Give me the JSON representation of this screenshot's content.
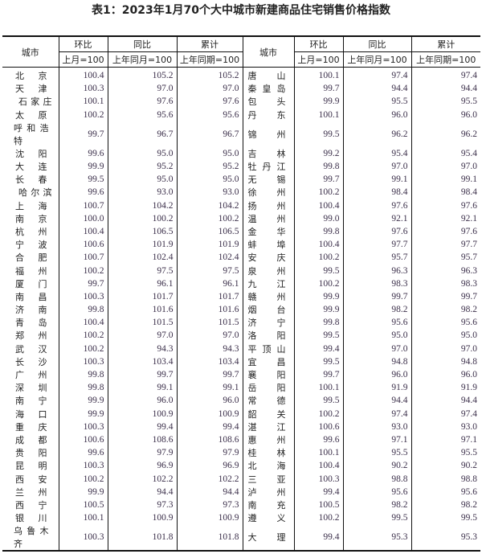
{
  "title": "表1：2023年1月70个大中城市新建商品住宅销售价格指数",
  "headers": {
    "city": "城市",
    "huanbi": "环比",
    "tongbi": "同比",
    "leiji": "累计",
    "huanbi_base": "上月=100",
    "tongbi_base": "上年同月=100",
    "leiji_base": "上年同期=100"
  },
  "left_rows": [
    [
      "北京",
      "100.4",
      "105.2",
      "105.2"
    ],
    [
      "天津",
      "100.3",
      "97.0",
      "97.0"
    ],
    [
      "石家庄",
      "100.1",
      "97.6",
      "97.6"
    ],
    [
      "太原",
      "100.2",
      "95.6",
      "95.6"
    ],
    [
      "呼和浩特",
      "99.7",
      "96.7",
      "96.7"
    ],
    [
      "沈阳",
      "99.6",
      "95.0",
      "95.0"
    ],
    [
      "大连",
      "99.9",
      "95.2",
      "95.2"
    ],
    [
      "长春",
      "99.5",
      "95.0",
      "95.0"
    ],
    [
      "哈尔滨",
      "99.6",
      "93.0",
      "93.0"
    ],
    [
      "上海",
      "100.7",
      "104.2",
      "104.2"
    ],
    [
      "南京",
      "100.0",
      "100.2",
      "100.2"
    ],
    [
      "杭州",
      "100.4",
      "106.5",
      "106.5"
    ],
    [
      "宁波",
      "100.6",
      "101.9",
      "101.9"
    ],
    [
      "合肥",
      "100.7",
      "102.4",
      "102.4"
    ],
    [
      "福州",
      "100.2",
      "97.5",
      "97.5"
    ],
    [
      "厦门",
      "99.7",
      "96.1",
      "96.1"
    ],
    [
      "南昌",
      "100.3",
      "101.7",
      "101.7"
    ],
    [
      "济南",
      "99.8",
      "101.6",
      "101.6"
    ],
    [
      "青岛",
      "100.4",
      "101.5",
      "101.5"
    ],
    [
      "郑州",
      "100.2",
      "97.0",
      "97.0"
    ],
    [
      "武汉",
      "100.2",
      "94.3",
      "94.3"
    ],
    [
      "长沙",
      "100.3",
      "103.4",
      "103.4"
    ],
    [
      "广州",
      "99.8",
      "99.7",
      "99.7"
    ],
    [
      "深圳",
      "99.8",
      "99.1",
      "99.1"
    ],
    [
      "南宁",
      "99.9",
      "96.0",
      "96.0"
    ],
    [
      "海口",
      "99.9",
      "100.9",
      "100.9"
    ],
    [
      "重庆",
      "100.3",
      "99.4",
      "99.4"
    ],
    [
      "成都",
      "100.6",
      "108.6",
      "108.6"
    ],
    [
      "贵阳",
      "99.6",
      "97.9",
      "97.9"
    ],
    [
      "昆明",
      "100.3",
      "96.9",
      "96.9"
    ],
    [
      "西安",
      "100.2",
      "102.2",
      "102.2"
    ],
    [
      "兰州",
      "99.9",
      "94.4",
      "94.4"
    ],
    [
      "西宁",
      "100.5",
      "97.3",
      "97.3"
    ],
    [
      "银川",
      "100.1",
      "100.9",
      "100.9"
    ],
    [
      "乌鲁木齐",
      "100.3",
      "101.8",
      "101.8"
    ]
  ],
  "right_rows": [
    [
      "唐山",
      "100.1",
      "97.4",
      "97.4"
    ],
    [
      "秦皇岛",
      "99.7",
      "94.4",
      "94.4"
    ],
    [
      "包头",
      "99.9",
      "95.5",
      "95.5"
    ],
    [
      "丹东",
      "100.1",
      "96.0",
      "96.0"
    ],
    [
      "锦州",
      "99.5",
      "96.2",
      "96.2"
    ],
    [
      "吉林",
      "99.2",
      "95.4",
      "95.4"
    ],
    [
      "牡丹江",
      "99.8",
      "97.0",
      "97.0"
    ],
    [
      "无锡",
      "99.7",
      "99.1",
      "99.1"
    ],
    [
      "徐州",
      "100.2",
      "98.4",
      "98.4"
    ],
    [
      "扬州",
      "100.4",
      "97.6",
      "97.6"
    ],
    [
      "温州",
      "99.0",
      "92.1",
      "92.1"
    ],
    [
      "金华",
      "99.8",
      "97.6",
      "97.6"
    ],
    [
      "蚌埠",
      "100.4",
      "97.7",
      "97.7"
    ],
    [
      "安庆",
      "100.2",
      "95.7",
      "95.7"
    ],
    [
      "泉州",
      "99.5",
      "96.3",
      "96.3"
    ],
    [
      "九江",
      "100.2",
      "98.3",
      "98.3"
    ],
    [
      "赣州",
      "99.9",
      "99.7",
      "99.7"
    ],
    [
      "烟台",
      "99.9",
      "98.2",
      "98.2"
    ],
    [
      "济宁",
      "99.8",
      "95.6",
      "95.6"
    ],
    [
      "洛阳",
      "99.5",
      "95.0",
      "95.0"
    ],
    [
      "平顶山",
      "99.4",
      "97.0",
      "97.0"
    ],
    [
      "宜昌",
      "99.5",
      "94.8",
      "94.8"
    ],
    [
      "襄阳",
      "99.7",
      "96.0",
      "96.0"
    ],
    [
      "岳阳",
      "100.1",
      "91.9",
      "91.9"
    ],
    [
      "常德",
      "99.5",
      "94.4",
      "94.4"
    ],
    [
      "韶关",
      "100.2",
      "97.4",
      "97.4"
    ],
    [
      "湛江",
      "100.6",
      "93.0",
      "93.0"
    ],
    [
      "惠州",
      "99.6",
      "97.1",
      "97.1"
    ],
    [
      "桂林",
      "100.1",
      "95.5",
      "95.5"
    ],
    [
      "北海",
      "100.4",
      "90.2",
      "90.2"
    ],
    [
      "三亚",
      "100.3",
      "98.8",
      "98.8"
    ],
    [
      "泸州",
      "99.4",
      "95.6",
      "95.6"
    ],
    [
      "南充",
      "100.5",
      "98.2",
      "98.2"
    ],
    [
      "遵义",
      "100.2",
      "99.5",
      "99.5"
    ],
    [
      "大理",
      "99.4",
      "95.3",
      "95.3"
    ]
  ]
}
